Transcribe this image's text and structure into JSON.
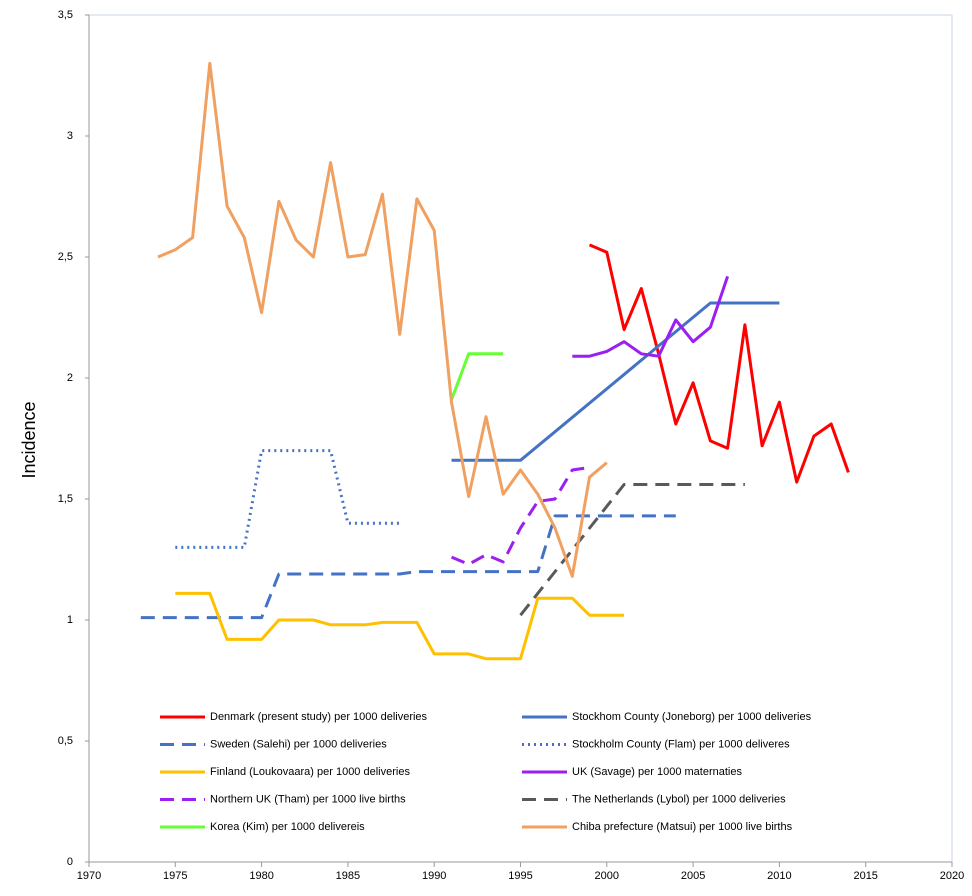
{
  "chart_data": {
    "type": "line",
    "y_label": "Incidence",
    "xlim": [
      1970,
      2020
    ],
    "xticks": [
      1970,
      1975,
      1980,
      1985,
      1990,
      1995,
      2000,
      2005,
      2010,
      2015,
      2020
    ],
    "ylim": [
      0,
      3.5
    ],
    "yticks": [
      0,
      {
        "value": 0.5,
        "label": "0,5"
      },
      1,
      {
        "value": 1.5,
        "label": "1,5"
      },
      2,
      {
        "value": 2.5,
        "label": "2,5"
      },
      3,
      {
        "value": 3.5,
        "label": "3,5"
      }
    ],
    "grid": false,
    "legend": "bottom",
    "series": [
      {
        "name": "Denmark (present study) per 1000 deliveries",
        "color": "#ff0000",
        "dash": "solid",
        "x": [
          1999,
          2000,
          2001,
          2002,
          2003,
          2004,
          2005,
          2006,
          2007,
          2008,
          2009,
          2010,
          2011,
          2012,
          2013,
          2014
        ],
        "values": [
          2.55,
          2.52,
          2.2,
          2.37,
          2.1,
          1.81,
          1.98,
          1.74,
          1.71,
          2.22,
          1.72,
          1.9,
          1.57,
          1.76,
          1.81,
          1.61
        ]
      },
      {
        "name": "Stockhom County (Joneborg) per 1000 deliveries",
        "color": "#4472c4",
        "dash": "solid",
        "x": [
          1991,
          1995,
          2006,
          2010
        ],
        "values": [
          1.66,
          1.66,
          2.31,
          2.31
        ]
      },
      {
        "name": "Sweden (Salehi) per 1000 deliveries",
        "color": "#4472c4",
        "dash": "dashed",
        "x": [
          1973,
          1980,
          1981,
          1988,
          1989,
          1996,
          1997,
          2004
        ],
        "values": [
          1.01,
          1.01,
          1.19,
          1.19,
          1.2,
          1.2,
          1.43,
          1.43
        ]
      },
      {
        "name": "Stockholm County (Flam) per 1000 deliveres",
        "color": "#4472c4",
        "dash": "dotted",
        "x": [
          1975,
          1979,
          1980,
          1984,
          1985,
          1988
        ],
        "values": [
          1.3,
          1.3,
          1.7,
          1.7,
          1.4,
          1.4
        ]
      },
      {
        "name": "Finland (Loukovaara) per 1000 deliveries",
        "color": "#ffc000",
        "dash": "solid",
        "x": [
          1975,
          1976,
          1977,
          1978,
          1979,
          1980,
          1981,
          1982,
          1983,
          1984,
          1985,
          1986,
          1987,
          1988,
          1989,
          1990,
          1991,
          1992,
          1993,
          1994,
          1995,
          1996,
          1997,
          1998,
          1999,
          2000,
          2001
        ],
        "values": [
          1.11,
          1.11,
          1.11,
          0.92,
          0.92,
          0.92,
          1.0,
          1.0,
          1.0,
          0.98,
          0.98,
          0.98,
          0.99,
          0.99,
          0.99,
          0.86,
          0.86,
          0.86,
          0.84,
          0.84,
          0.84,
          1.09,
          1.09,
          1.09,
          1.02,
          1.02,
          1.02
        ]
      },
      {
        "name": "UK (Savage) per 1000 maternaties",
        "color": "#9b1ff0",
        "dash": "solid",
        "x": [
          1998,
          1999,
          2000,
          2001,
          2002,
          2003,
          2004,
          2005,
          2006,
          2007
        ],
        "values": [
          2.09,
          2.09,
          2.11,
          2.15,
          2.1,
          2.09,
          2.24,
          2.15,
          2.21,
          2.42
        ]
      },
      {
        "name": "Northern UK (Tham) per 1000 live births",
        "color": "#9b1ff0",
        "dash": "dashed",
        "x": [
          1991,
          1992,
          1993,
          1994,
          1995,
          1996,
          1997,
          1998,
          1999
        ],
        "values": [
          1.26,
          1.23,
          1.27,
          1.24,
          1.38,
          1.49,
          1.5,
          1.62,
          1.63
        ]
      },
      {
        "name": "The Netherlands (Lybol) per 1000 deliveries",
        "color": "#595959",
        "dash": "dashed",
        "x": [
          1995,
          2001,
          2008
        ],
        "values": [
          1.02,
          1.56,
          1.56
        ]
      },
      {
        "name": "Korea (Kim) per 1000 delivereis",
        "color": "#66ff33",
        "dash": "solid",
        "x": [
          1991,
          1992,
          1993,
          1994
        ],
        "values": [
          1.91,
          2.1,
          2.1,
          2.1
        ]
      },
      {
        "name": "Chiba prefecture (Matsui) per 1000 live births",
        "color": "#f0a060",
        "dash": "solid",
        "x": [
          1974,
          1975,
          1976,
          1977,
          1978,
          1979,
          1980,
          1981,
          1982,
          1983,
          1984,
          1985,
          1986,
          1987,
          1988,
          1989,
          1990,
          1991,
          1992,
          1993,
          1994,
          1995,
          1996,
          1997,
          1998,
          1999,
          2000
        ],
        "values": [
          2.5,
          2.53,
          2.58,
          3.3,
          2.71,
          2.58,
          2.27,
          2.73,
          2.57,
          2.5,
          2.89,
          2.5,
          2.51,
          2.76,
          2.18,
          2.74,
          2.61,
          1.9,
          1.51,
          1.84,
          1.52,
          1.62,
          1.52,
          1.38,
          1.18,
          1.59,
          1.65
        ]
      }
    ]
  }
}
